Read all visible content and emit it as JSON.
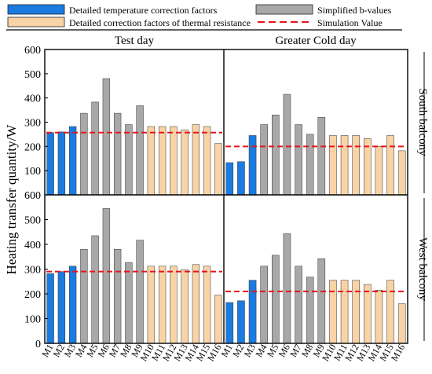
{
  "legend": {
    "items": [
      {
        "label": "Detailed temperature correction factors",
        "color": "#1a7be0",
        "kind": "box"
      },
      {
        "label": "Simplified b-values",
        "color": "#a8a8a8",
        "kind": "box"
      },
      {
        "label": "Detailed correction factors of thermal resistance",
        "color": "#f8d3a6",
        "kind": "box"
      },
      {
        "label": "Simulation Value",
        "color": "#e8141c",
        "kind": "dash"
      }
    ]
  },
  "chart_data": {
    "type": "bar",
    "ylabel": "Heating transfer quantity/W",
    "ylim": [
      0,
      600
    ],
    "yticks": [
      "0",
      "100",
      "200",
      "300",
      "400",
      "500",
      "600"
    ],
    "columns": [
      "Test day",
      "Greater Cold day"
    ],
    "rows": [
      "South balcony",
      "West balcony"
    ],
    "categories": [
      "M1",
      "M2",
      "M3",
      "M4",
      "M5",
      "M6",
      "M7",
      "M8",
      "M9",
      "M10",
      "M11",
      "M12",
      "M13",
      "M14",
      "M15",
      "M16"
    ],
    "category_groups": [
      0,
      0,
      0,
      1,
      1,
      1,
      1,
      1,
      1,
      2,
      2,
      2,
      2,
      2,
      2,
      2
    ],
    "group_colors": [
      "#1a7be0",
      "#a8a8a8",
      "#f8d3a6"
    ],
    "panels": [
      {
        "row": 0,
        "col": 0,
        "simulation": 257,
        "values": [
          257,
          260,
          282,
          337,
          383,
          480,
          337,
          290,
          368,
          282,
          282,
          282,
          268,
          290,
          282,
          212
        ]
      },
      {
        "row": 0,
        "col": 1,
        "simulation": 200,
        "values": [
          133,
          137,
          245,
          290,
          330,
          415,
          290,
          250,
          320,
          245,
          245,
          245,
          232,
          200,
          245,
          182
        ]
      },
      {
        "row": 1,
        "col": 0,
        "simulation": 290,
        "values": [
          282,
          290,
          312,
          380,
          435,
          545,
          380,
          327,
          417,
          312,
          312,
          312,
          298,
          318,
          312,
          195
        ]
      },
      {
        "row": 1,
        "col": 1,
        "simulation": 210,
        "values": [
          165,
          172,
          255,
          312,
          356,
          443,
          312,
          268,
          342,
          255,
          255,
          255,
          238,
          215,
          255,
          160
        ]
      }
    ]
  }
}
